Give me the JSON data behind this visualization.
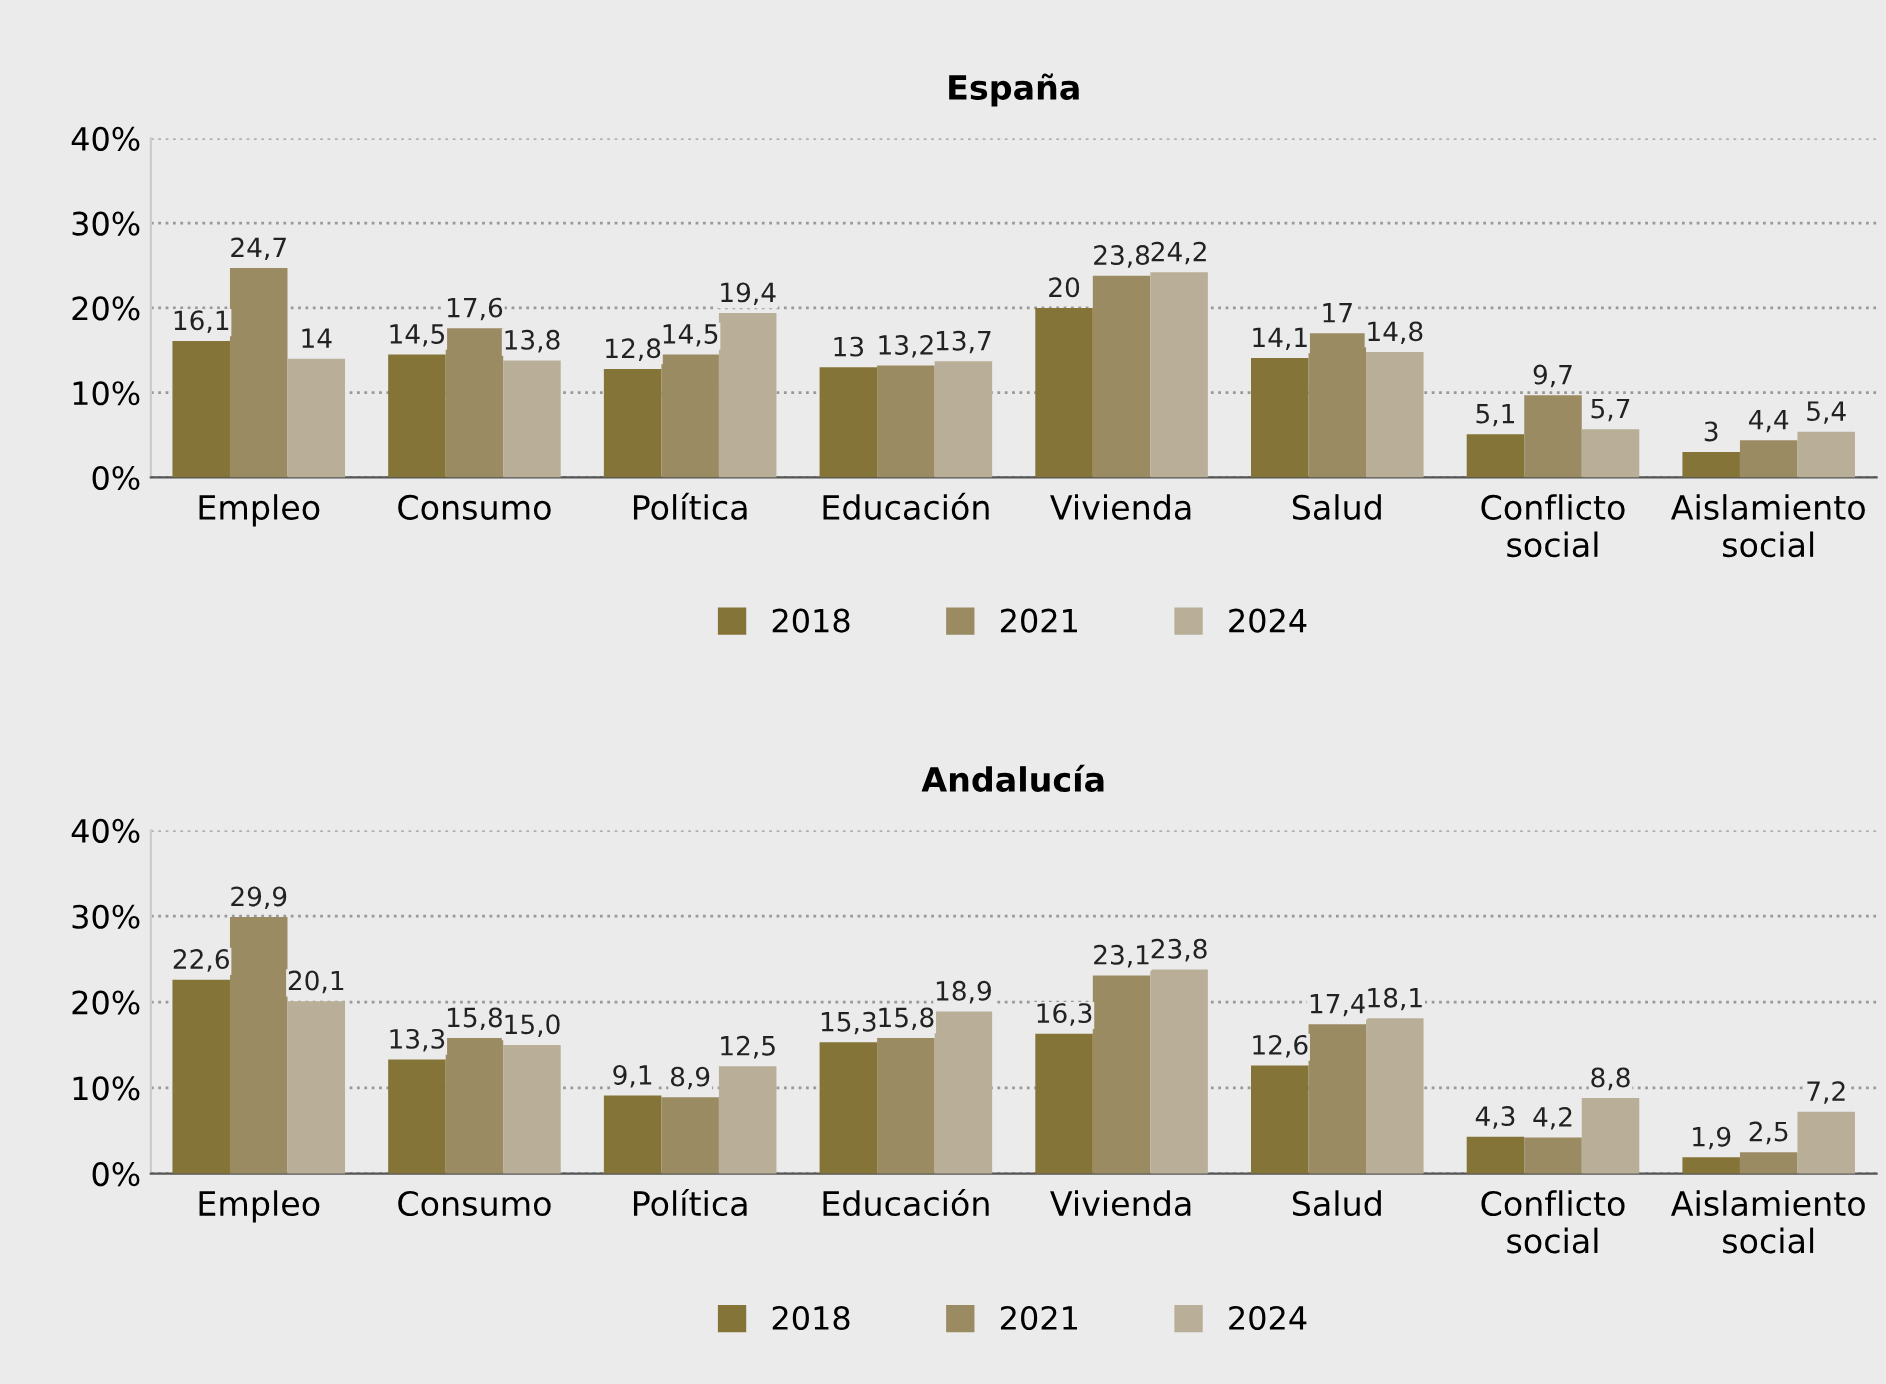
{
  "chart_data": [
    {
      "type": "bar",
      "title": "España",
      "categories": [
        "Empleo",
        "Consumo",
        "Política",
        "Educación",
        "Vivienda",
        "Salud",
        "Conflicto\nsocial",
        "Aislamiento\nsocial"
      ],
      "ylim": [
        0,
        40
      ],
      "yticks": [
        {
          "value": 0,
          "label": "0%"
        },
        {
          "value": 10,
          "label": "10%"
        },
        {
          "value": 20,
          "label": "20%"
        },
        {
          "value": 30,
          "label": "30%"
        },
        {
          "value": 40,
          "label": "40%"
        }
      ],
      "grid": "y",
      "legend": "bottom",
      "series": [
        {
          "name": "2018",
          "color": "#857437",
          "values": [
            16.1,
            14.5,
            12.8,
            13,
            20,
            14.1,
            5.1,
            3
          ],
          "value_labels": [
            "16,1",
            "14,5",
            "12,8",
            "13",
            "20",
            "14,1",
            "5,1",
            "3"
          ]
        },
        {
          "name": "2021",
          "color": "#9b8b63",
          "values": [
            24.7,
            17.6,
            14.5,
            13.2,
            23.8,
            17,
            9.7,
            4.4
          ],
          "value_labels": [
            "24,7",
            "17,6",
            "14,5",
            "13,2",
            "23,8",
            "17",
            "9,7",
            "4,4"
          ]
        },
        {
          "name": "2024",
          "color": "#b9af99",
          "values": [
            14,
            13.8,
            19.4,
            13.7,
            24.2,
            14.8,
            5.7,
            5.4
          ],
          "value_labels": [
            "14",
            "13,8",
            "19,4",
            "13,7",
            "24,2",
            "14,8",
            "5,7",
            "5,4"
          ]
        }
      ]
    },
    {
      "type": "bar",
      "title": "Andalucía",
      "categories": [
        "Empleo",
        "Consumo",
        "Política",
        "Educación",
        "Vivienda",
        "Salud",
        "Conflicto\nsocial",
        "Aislamiento\nsocial"
      ],
      "ylim": [
        0,
        40
      ],
      "yticks": [
        {
          "value": 0,
          "label": "0%"
        },
        {
          "value": 10,
          "label": "10%"
        },
        {
          "value": 20,
          "label": "20%"
        },
        {
          "value": 30,
          "label": "30%"
        },
        {
          "value": 40,
          "label": "40%"
        }
      ],
      "grid": "y",
      "legend": "bottom",
      "series": [
        {
          "name": "2018",
          "color": "#857437",
          "values": [
            22.6,
            13.3,
            9.1,
            15.3,
            16.3,
            12.6,
            4.3,
            1.9
          ],
          "value_labels": [
            "22,6",
            "13,3",
            "9,1",
            "15,3",
            "16,3",
            "12,6",
            "4,3",
            "1,9"
          ]
        },
        {
          "name": "2021",
          "color": "#9b8b63",
          "values": [
            29.9,
            15.8,
            8.9,
            15.8,
            23.1,
            17.4,
            4.2,
            2.5
          ],
          "value_labels": [
            "29,9",
            "15,8",
            "8,9",
            "15,8",
            "23,1",
            "17,4",
            "4,2",
            "2,5"
          ]
        },
        {
          "name": "2024",
          "color": "#b9af99",
          "values": [
            20.1,
            15.0,
            12.5,
            18.9,
            23.8,
            18.1,
            8.8,
            7.2
          ],
          "value_labels": [
            "20,1",
            "15,0",
            "12,5",
            "18,9",
            "23,8",
            "18,1",
            "8,8",
            "7,2"
          ]
        }
      ]
    }
  ]
}
